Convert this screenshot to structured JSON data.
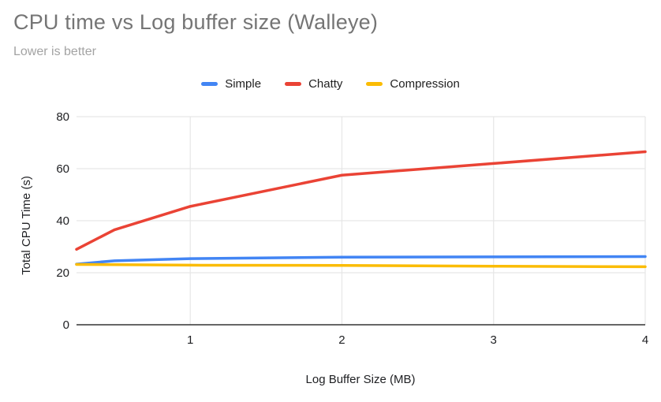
{
  "title": "CPU time vs Log buffer size (Walleye)",
  "subtitle": "Lower is better",
  "chart_data": {
    "type": "line",
    "title": "CPU time vs Log buffer size (Walleye)",
    "subtitle": "Lower is better",
    "xlabel": "Log Buffer Size (MB)",
    "ylabel": "Total CPU Time (s)",
    "x": [
      0.25,
      0.5,
      1,
      2,
      3,
      4
    ],
    "series": [
      {
        "name": "Simple",
        "color": "#4285F4",
        "values": [
          23.3,
          24.6,
          25.4,
          26.0,
          26.1,
          26.2
        ]
      },
      {
        "name": "Chatty",
        "color": "#EA4335",
        "values": [
          29.0,
          36.5,
          45.5,
          57.5,
          62.0,
          66.5
        ]
      },
      {
        "name": "Compression",
        "color": "#FBBC04",
        "values": [
          23.2,
          23.1,
          22.9,
          22.8,
          22.5,
          22.3
        ]
      }
    ],
    "xlim": [
      0.25,
      4
    ],
    "ylim": [
      0,
      80
    ],
    "xticks": [
      1,
      2,
      3,
      4
    ],
    "yticks": [
      0,
      20,
      40,
      60,
      80
    ],
    "grid": true,
    "legend_position": "top",
    "colors": {
      "title_text": "#757575",
      "subtitle_text": "#a3a3a3",
      "gridline": "#e6e6e6",
      "axis_baseline": "#333333",
      "tick_text": "#202124"
    }
  }
}
